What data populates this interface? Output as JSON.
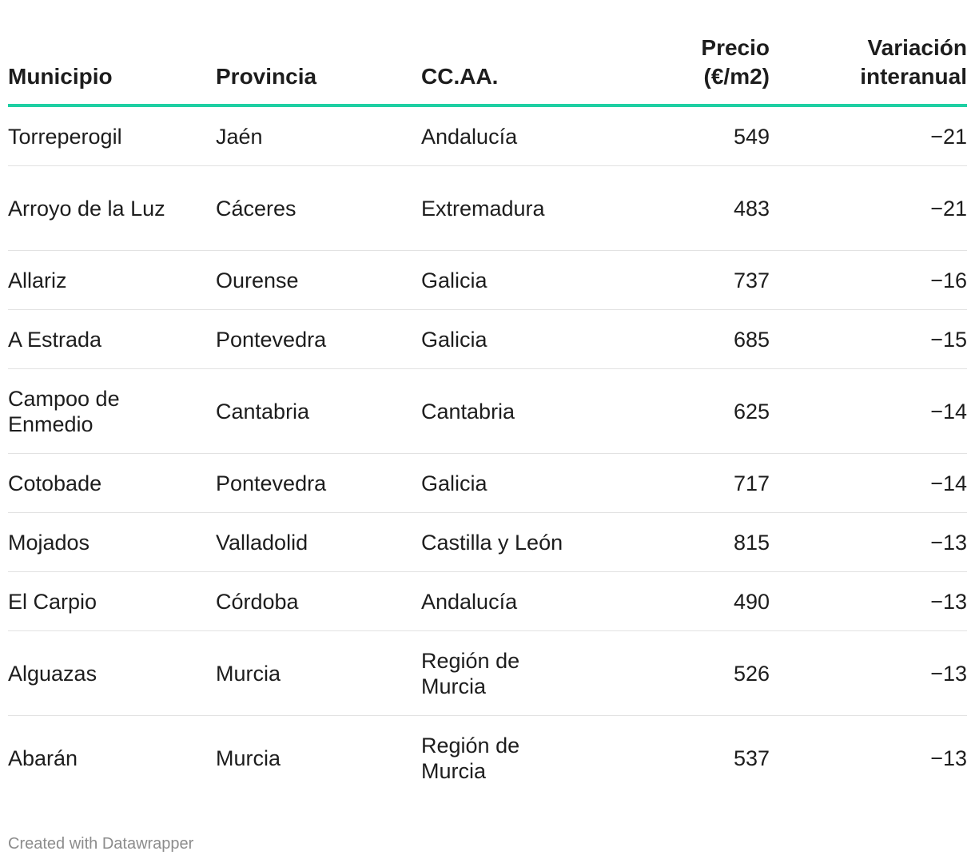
{
  "chart_data": {
    "type": "table",
    "columns": [
      {
        "key": "municipio",
        "label": "Municipio"
      },
      {
        "key": "provincia",
        "label": "Provincia"
      },
      {
        "key": "ccaa",
        "label": "CC.AA."
      },
      {
        "key": "precio",
        "label_lines": [
          "Precio",
          "(€/m2)"
        ]
      },
      {
        "key": "variacion",
        "label_lines": [
          "Variación",
          "interanual"
        ]
      }
    ],
    "rows": [
      {
        "municipio": "Torreperogil",
        "provincia": "Jaén",
        "ccaa": "Andalucía",
        "precio": "549",
        "variacion": "−21"
      },
      {
        "municipio": "Arroyo de la Luz",
        "provincia": "Cáceres",
        "ccaa": "Extremadura",
        "precio": "483",
        "variacion": "−21"
      },
      {
        "municipio": "Allariz",
        "provincia": "Ourense",
        "ccaa": "Galicia",
        "precio": "737",
        "variacion": "−16"
      },
      {
        "municipio": "A Estrada",
        "provincia": "Pontevedra",
        "ccaa": "Galicia",
        "precio": "685",
        "variacion": "−15"
      },
      {
        "municipio": "Campoo de Enmedio",
        "provincia": "Cantabria",
        "ccaa": "Cantabria",
        "precio": "625",
        "variacion": "−14"
      },
      {
        "municipio": "Cotobade",
        "provincia": "Pontevedra",
        "ccaa": "Galicia",
        "precio": "717",
        "variacion": "−14"
      },
      {
        "municipio": "Mojados",
        "provincia": "Valladolid",
        "ccaa": "Castilla y León",
        "precio": "815",
        "variacion": "−13"
      },
      {
        "municipio": "El Carpio",
        "provincia": "Córdoba",
        "ccaa": "Andalucía",
        "precio": "490",
        "variacion": "−13"
      },
      {
        "municipio": "Alguazas",
        "provincia": "Murcia",
        "ccaa": "Región de Murcia",
        "precio": "526",
        "variacion": "−13"
      },
      {
        "municipio": "Abarán",
        "provincia": "Murcia",
        "ccaa": "Región de Murcia",
        "precio": "537",
        "variacion": "−13"
      }
    ],
    "header_rule_color": "#1ecfa3"
  },
  "footer": {
    "credit": "Created with Datawrapper"
  }
}
